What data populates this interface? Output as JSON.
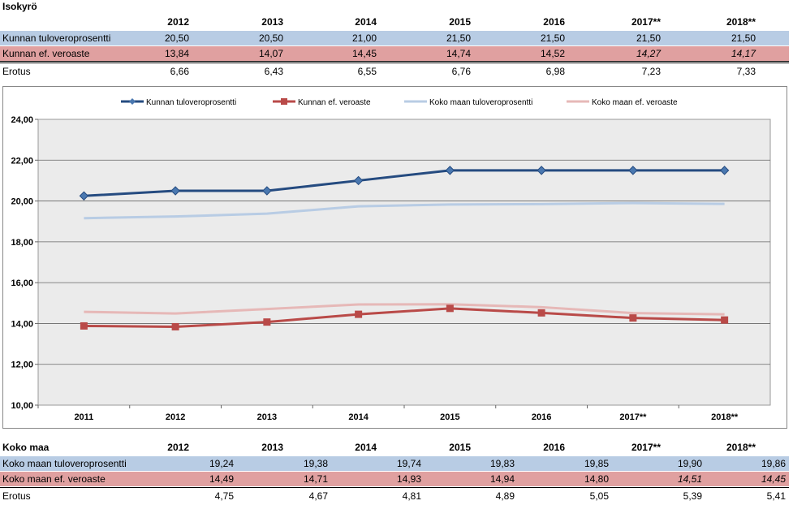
{
  "top": {
    "title": "Isokyrö",
    "years": [
      "2012",
      "2013",
      "2014",
      "2015",
      "2016",
      "2017**",
      "2018**"
    ],
    "rows": [
      {
        "label": "Kunnan tuloveroprosentti",
        "values": [
          "20,50",
          "20,50",
          "21,00",
          "21,50",
          "21,50",
          "21,50",
          "21,50"
        ]
      },
      {
        "label": "Kunnan ef. veroaste",
        "values": [
          "13,84",
          "14,07",
          "14,45",
          "14,74",
          "14,52",
          "14,27",
          "14,17"
        ]
      },
      {
        "label": "Erotus",
        "values": [
          "6,66",
          "6,43",
          "6,55",
          "6,76",
          "6,98",
          "7,23",
          "7,33"
        ]
      }
    ]
  },
  "bottom": {
    "title": "Koko maa",
    "years": [
      "2012",
      "2013",
      "2014",
      "2015",
      "2016",
      "2017**",
      "2018**"
    ],
    "rows": [
      {
        "label": "Koko maan tuloveroprosentti",
        "values": [
          "19,24",
          "19,38",
          "19,74",
          "19,83",
          "19,85",
          "19,90",
          "19,86"
        ]
      },
      {
        "label": "Koko maan ef. veroaste",
        "values": [
          "14,49",
          "14,71",
          "14,93",
          "14,94",
          "14,80",
          "14,51",
          "14,45"
        ]
      },
      {
        "label": "Erotus",
        "values": [
          "4,75",
          "4,67",
          "4,81",
          "4,89",
          "5,05",
          "5,39",
          "5,41"
        ]
      }
    ]
  },
  "chart_data": {
    "type": "line",
    "categories": [
      "2011",
      "2012",
      "2013",
      "2014",
      "2015",
      "2016",
      "2017**",
      "2018**"
    ],
    "ylim": [
      10,
      24
    ],
    "yticks": [
      "10,00",
      "12,00",
      "14,00",
      "16,00",
      "18,00",
      "20,00",
      "22,00",
      "24,00"
    ],
    "ytick_values": [
      10,
      12,
      14,
      16,
      18,
      20,
      22,
      24
    ],
    "series": [
      {
        "name": "Kunnan tuloveroprosentti",
        "color": "#254b80",
        "marker": "diamond",
        "values": [
          20.25,
          20.5,
          20.5,
          21.0,
          21.5,
          21.5,
          21.5,
          21.5
        ]
      },
      {
        "name": "Kunnan ef. veroaste",
        "color": "#b94a48",
        "marker": "square",
        "values": [
          13.88,
          13.84,
          14.07,
          14.45,
          14.74,
          14.52,
          14.27,
          14.17
        ]
      },
      {
        "name": "Koko maan tuloveroprosentti",
        "color": "#b8cce4",
        "marker": "none",
        "values": [
          19.16,
          19.24,
          19.38,
          19.74,
          19.83,
          19.85,
          19.9,
          19.86
        ]
      },
      {
        "name": "Koko maan ef. veroaste",
        "color": "#e6b8b7",
        "marker": "none",
        "values": [
          14.57,
          14.49,
          14.71,
          14.93,
          14.94,
          14.8,
          14.51,
          14.45
        ]
      }
    ]
  }
}
